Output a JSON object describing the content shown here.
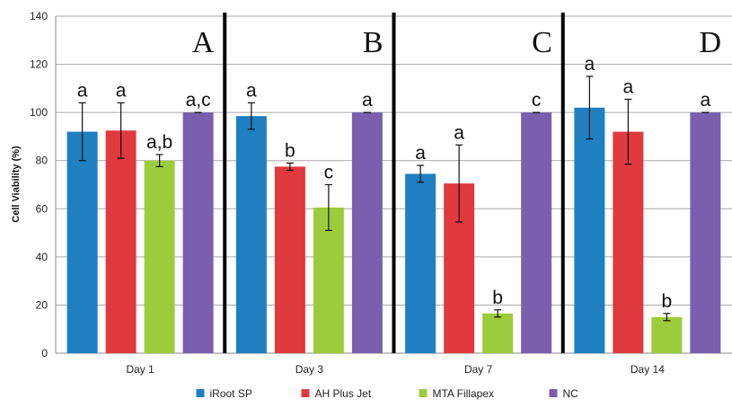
{
  "chart_data": {
    "type": "bar",
    "ylabel": "Cell Viability (%)",
    "ylim": [
      0,
      140
    ],
    "yticks": [
      0,
      20,
      40,
      60,
      80,
      100,
      120,
      140
    ],
    "grid": true,
    "legend_position": "bottom",
    "categories": [
      "Day 1",
      "Day 3",
      "Day 7",
      "Day 14"
    ],
    "panel_labels": [
      "A",
      "B",
      "C",
      "D"
    ],
    "series": [
      {
        "name": "iRoot SP",
        "color": "#1f7fc1",
        "values": [
          92,
          98.5,
          74.5,
          102
        ],
        "errors": [
          12,
          5.5,
          3.5,
          13
        ],
        "letters": [
          "a",
          "a",
          "a",
          "a"
        ]
      },
      {
        "name": "AH Plus Jet",
        "color": "#e0393e",
        "values": [
          92.5,
          77.5,
          70.5,
          92
        ],
        "errors": [
          11.5,
          1.5,
          16,
          13.5
        ],
        "letters": [
          "a",
          "b",
          "a",
          "a"
        ]
      },
      {
        "name": "MTA Fillapex",
        "color": "#9ccc3c",
        "values": [
          80,
          60.5,
          16.5,
          15
        ],
        "errors": [
          2.5,
          9.5,
          1.5,
          1.5
        ],
        "letters": [
          "a,b",
          "c",
          "b",
          "b"
        ]
      },
      {
        "name": "NC",
        "color": "#7a5fae",
        "values": [
          100,
          100,
          100,
          100
        ],
        "errors": [
          0,
          0,
          0,
          0
        ],
        "letters": [
          "a,c",
          "a",
          "c",
          "a"
        ]
      }
    ]
  }
}
